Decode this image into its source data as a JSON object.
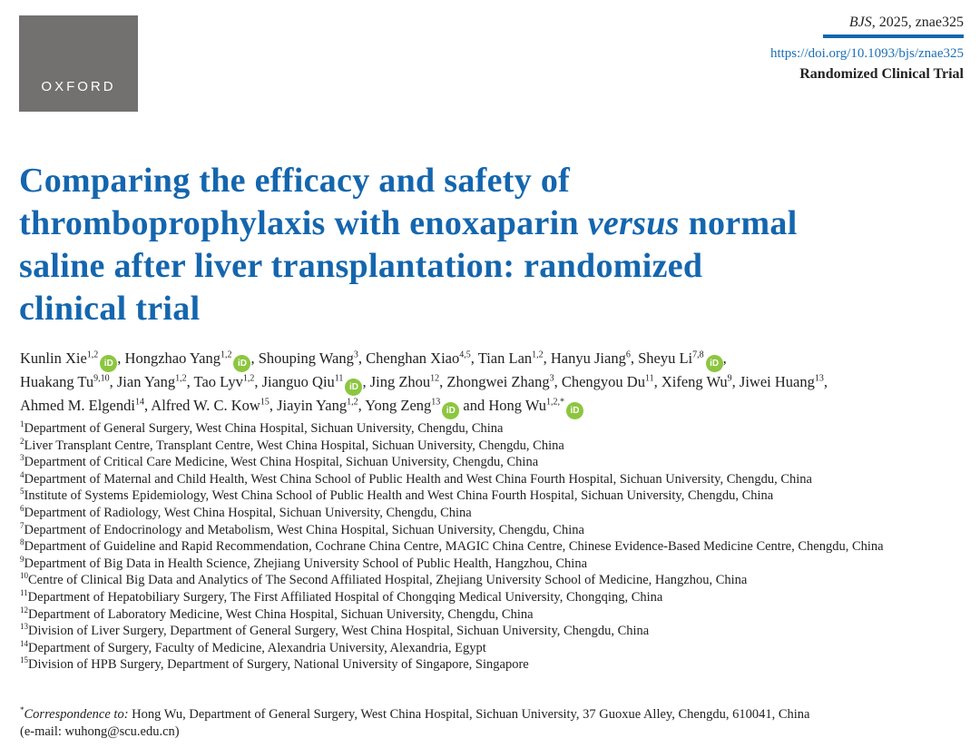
{
  "logo": {
    "text": "OXFORD"
  },
  "meta": {
    "journal": "BJS",
    "citation_rest": ", 2025, znae325",
    "doi": "https://doi.org/10.1093/bjs/znae325",
    "article_type": "Randomized Clinical Trial"
  },
  "title": {
    "line1": "Comparing the efficacy and safety of",
    "line2a": "thromboprophylaxis with enoxaparin ",
    "line2_italic": "versus",
    "line2b": " normal",
    "line3": "saline after liver transplantation: randomized",
    "line4": "clinical trial"
  },
  "orcid_label": "iD",
  "authors": [
    {
      "name": "Kunlin Xie",
      "sup": "1,2",
      "orcid": true
    },
    {
      "name": "Hongzhao Yang",
      "sup": "1,2",
      "orcid": true
    },
    {
      "name": "Shouping Wang",
      "sup": "3",
      "orcid": false
    },
    {
      "name": "Chenghan Xiao",
      "sup": "4,5",
      "orcid": false
    },
    {
      "name": "Tian Lan",
      "sup": "1,2",
      "orcid": false
    },
    {
      "name": "Hanyu Jiang",
      "sup": "6",
      "orcid": false
    },
    {
      "name": "Sheyu Li",
      "sup": "7,8",
      "orcid": true,
      "break": true
    },
    {
      "name": "Huakang Tu",
      "sup": "9,10",
      "orcid": false
    },
    {
      "name": "Jian Yang",
      "sup": "1,2",
      "orcid": false
    },
    {
      "name": "Tao Lyv",
      "sup": "1,2",
      "orcid": false
    },
    {
      "name": "Jianguo Qiu",
      "sup": "11",
      "orcid": true
    },
    {
      "name": "Jing Zhou",
      "sup": "12",
      "orcid": false
    },
    {
      "name": "Zhongwei Zhang",
      "sup": "3",
      "orcid": false
    },
    {
      "name": "Chengyou Du",
      "sup": "11",
      "orcid": false
    },
    {
      "name": "Xifeng Wu",
      "sup": "9",
      "orcid": false
    },
    {
      "name": "Jiwei Huang",
      "sup": "13",
      "orcid": false,
      "break": true
    },
    {
      "name": "Ahmed M. Elgendi",
      "sup": "14",
      "orcid": false
    },
    {
      "name": "Alfred W. C. Kow",
      "sup": "15",
      "orcid": false
    },
    {
      "name": "Jiayin Yang",
      "sup": "1,2",
      "orcid": false
    },
    {
      "name": "Yong Zeng",
      "sup": "13",
      "orcid": true
    },
    {
      "name": "Hong Wu",
      "sup": "1,2,*",
      "orcid": true
    }
  ],
  "authors_and": "and",
  "affiliations": [
    {
      "num": "1",
      "text": "Department of General Surgery, West China Hospital, Sichuan University, Chengdu, China"
    },
    {
      "num": "2",
      "text": "Liver Transplant Centre, Transplant Centre, West China Hospital, Sichuan University, Chengdu, China"
    },
    {
      "num": "3",
      "text": "Department of Critical Care Medicine, West China Hospital, Sichuan University, Chengdu, China"
    },
    {
      "num": "4",
      "text": "Department of Maternal and Child Health, West China School of Public Health and West China Fourth Hospital, Sichuan University, Chengdu, China"
    },
    {
      "num": "5",
      "text": "Institute of Systems Epidemiology, West China School of Public Health and West China Fourth Hospital, Sichuan University, Chengdu, China"
    },
    {
      "num": "6",
      "text": "Department of Radiology, West China Hospital, Sichuan University, Chengdu, China"
    },
    {
      "num": "7",
      "text": "Department of Endocrinology and Metabolism, West China Hospital, Sichuan University, Chengdu, China"
    },
    {
      "num": "8",
      "text": "Department of Guideline and Rapid Recommendation, Cochrane China Centre, MAGIC China Centre, Chinese Evidence-Based Medicine Centre, Chengdu, China"
    },
    {
      "num": "9",
      "text": "Department of Big Data in Health Science, Zhejiang University School of Public Health, Hangzhou, China"
    },
    {
      "num": "10",
      "text": "Centre of Clinical Big Data and Analytics of The Second Affiliated Hospital, Zhejiang University School of Medicine, Hangzhou, China"
    },
    {
      "num": "11",
      "text": "Department of Hepatobiliary Surgery, The First Affiliated Hospital of Chongqing Medical University, Chongqing, China"
    },
    {
      "num": "12",
      "text": "Department of Laboratory Medicine, West China Hospital, Sichuan University, Chengdu, China"
    },
    {
      "num": "13",
      "text": "Division of Liver Surgery, Department of General Surgery, West China Hospital, Sichuan University, Chengdu, China"
    },
    {
      "num": "14",
      "text": "Department of Surgery, Faculty of Medicine, Alexandria University, Alexandria, Egypt"
    },
    {
      "num": "15",
      "text": "Division of HPB Surgery, Department of Surgery, National University of Singapore, Singapore"
    }
  ],
  "correspondence": {
    "star": "*",
    "label": "Correspondence to:",
    "text": " Hong Wu, Department of General Surgery, West China Hospital, Sichuan University, 37 Guoxue Alley, Chengdu, 610041, China",
    "email": "(e-mail: wuhong@scu.edu.cn)"
  }
}
